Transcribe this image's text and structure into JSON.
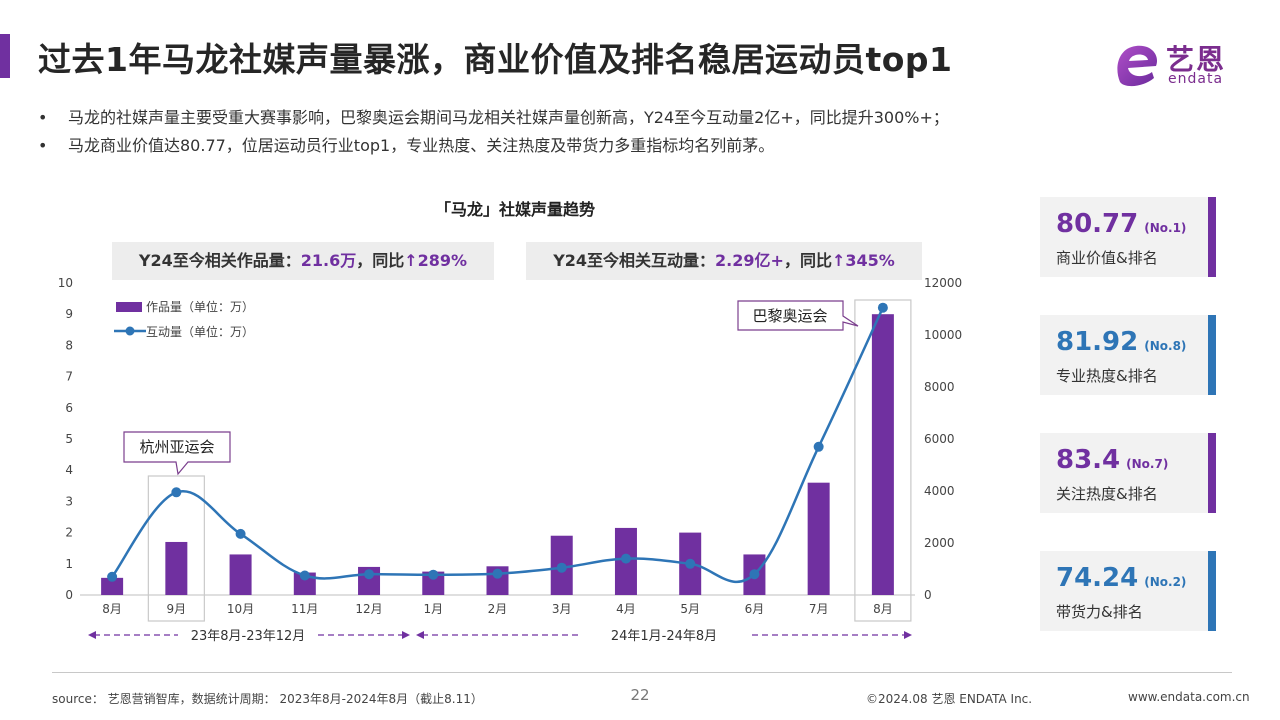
{
  "title": "过去1年马龙社媒声量暴涨，商业价值及排名稳居运动员top1",
  "logo": {
    "cn": "艺恩",
    "en": "endata"
  },
  "bullets": [
    "马龙的社媒声量主要受重大赛事影响，巴黎奥运会期间马龙相关社媒声量创新高，Y24至今互动量2亿+，同比提升300%+；",
    "马龙商业价值达80.77，位居运动员行业top1，专业热度、关注热度及带货力多重指标均名列前茅。"
  ],
  "bullet_marker": "•",
  "stats": [
    {
      "label": "Y24至今相关作品量：",
      "value": "21.6万",
      "suffix": "，同比",
      "arrow": "↑",
      "pct": "289%"
    },
    {
      "label": "Y24至今相关互动量：",
      "value": "2.29亿+",
      "suffix": "，同比",
      "arrow": "↑",
      "pct": "345%"
    }
  ],
  "kpis": [
    {
      "value": "80.77",
      "rank": "(No.1)",
      "label": "商业价值&排名",
      "color": "#7030a0"
    },
    {
      "value": "81.92",
      "rank": "(No.8)",
      "label": "专业热度&排名",
      "color": "#2e75b6"
    },
    {
      "value": "83.4",
      "rank": "(No.7)",
      "label": "关注热度&排名",
      "color": "#7030a0"
    },
    {
      "value": "74.24",
      "rank": "(No.2)",
      "label": "带货力&排名",
      "color": "#2e75b6"
    }
  ],
  "chart_data": {
    "type": "bar",
    "title": "「马龙」社媒声量趋势",
    "categories": [
      "8月",
      "9月",
      "10月",
      "11月",
      "12月",
      "1月",
      "2月",
      "3月",
      "4月",
      "5月",
      "6月",
      "7月",
      "8月"
    ],
    "series": [
      {
        "name": "作品量（单位：万）",
        "type": "bar",
        "axis": "left",
        "color": "#7030a0",
        "values": [
          0.55,
          1.7,
          1.3,
          0.72,
          0.9,
          0.75,
          0.92,
          1.9,
          2.15,
          2.0,
          1.3,
          3.6,
          9.0
        ]
      },
      {
        "name": "互动量（单位：万）",
        "type": "line",
        "axis": "right",
        "color": "#2e75b6",
        "values": [
          700,
          3950,
          2350,
          750,
          800,
          780,
          820,
          1050,
          1400,
          1200,
          800,
          5700,
          11050
        ]
      }
    ],
    "left_axis": {
      "ylim": [
        0,
        10
      ],
      "ticks": [
        "0",
        "1",
        "2",
        "3",
        "4",
        "5",
        "6",
        "7",
        "8",
        "9",
        "10"
      ]
    },
    "right_axis": {
      "ylim": [
        0,
        12000
      ],
      "ticks": [
        "0",
        "2000",
        "4000",
        "6000",
        "8000",
        "10000",
        "12000"
      ]
    },
    "annotations": [
      {
        "text": "杭州亚运会",
        "category_index": 1
      },
      {
        "text": "巴黎奥运会",
        "category_index": 12
      }
    ],
    "periods": [
      {
        "text": "23年8月-23年12月"
      },
      {
        "text": "24年1月-24年8月"
      }
    ],
    "legend_position": "top-left",
    "grid": false
  },
  "footer": {
    "source": "source： 艺恩营销智库，数据统计周期： 2023年8月-2024年8月（截止8.11）",
    "page": "22",
    "copyright": "©2024.08  艺恩 ENDATA Inc.",
    "url": "www.endata.com.cn"
  }
}
